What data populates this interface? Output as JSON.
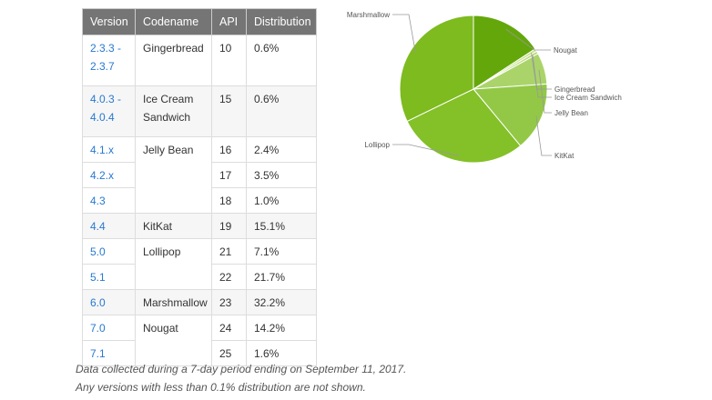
{
  "table": {
    "headers": [
      "Version",
      "Codename",
      "API",
      "Distribution"
    ],
    "rows": [
      {
        "version": "2.3.3 -\n2.3.7",
        "codename": "Gingerbread",
        "api": "10",
        "distribution": "0.6%"
      },
      {
        "version": "4.0.3 -\n4.0.4",
        "codename": "Ice Cream\nSandwich",
        "api": "15",
        "distribution": "0.6%"
      },
      {
        "version": "4.1.x",
        "codename": "Jelly Bean",
        "api": "16",
        "distribution": "2.4%"
      },
      {
        "version": "4.2.x",
        "codename": "",
        "api": "17",
        "distribution": "3.5%"
      },
      {
        "version": "4.3",
        "codename": "",
        "api": "18",
        "distribution": "1.0%"
      },
      {
        "version": "4.4",
        "codename": "KitKat",
        "api": "19",
        "distribution": "15.1%"
      },
      {
        "version": "5.0",
        "codename": "Lollipop",
        "api": "21",
        "distribution": "7.1%"
      },
      {
        "version": "5.1",
        "codename": "",
        "api": "22",
        "distribution": "21.7%"
      },
      {
        "version": "6.0",
        "codename": "Marshmallow",
        "api": "23",
        "distribution": "32.2%"
      },
      {
        "version": "7.0",
        "codename": "Nougat",
        "api": "24",
        "distribution": "14.2%"
      },
      {
        "version": "7.1",
        "codename": "",
        "api": "25",
        "distribution": "1.6%"
      }
    ]
  },
  "notes": {
    "line1": "Data collected during a 7-day period ending on September 11, 2017.",
    "line2": "Any versions with less than 0.1% distribution are not shown."
  },
  "chart_data": {
    "type": "pie",
    "title": "",
    "start": "top, clockwise",
    "slices": [
      {
        "label": "Nougat",
        "value": 15.8,
        "color": "#64a70b"
      },
      {
        "label": "Gingerbread",
        "value": 0.6,
        "color": "#c8e28c"
      },
      {
        "label": "Ice Cream Sandwich",
        "value": 0.6,
        "color": "#b9d978"
      },
      {
        "label": "Jelly Bean",
        "value": 6.9,
        "color": "#aad46a"
      },
      {
        "label": "KitKat",
        "value": 15.1,
        "color": "#93c847"
      },
      {
        "label": "Lollipop",
        "value": 28.8,
        "color": "#84c028"
      },
      {
        "label": "Marshmallow",
        "value": 32.2,
        "color": "#7dbb1f"
      }
    ]
  },
  "colors": {
    "header_bg": "#757575",
    "link": "#2879d0",
    "zebra": "#f6f6f6"
  }
}
